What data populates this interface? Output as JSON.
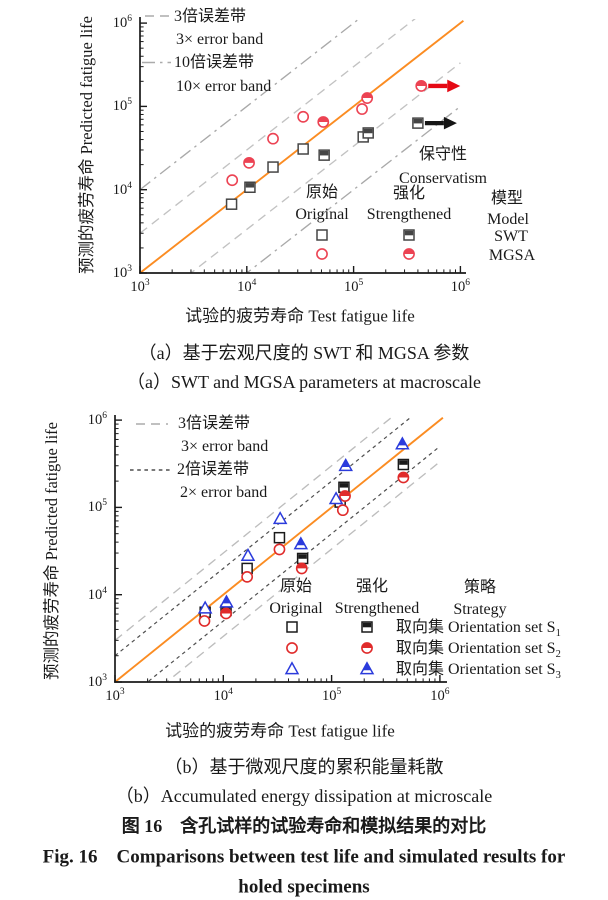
{
  "chart_data": [
    {
      "id": "a",
      "type": "scatter",
      "xscale": "log",
      "yscale": "log",
      "xlim": [
        1000,
        1000000
      ],
      "ylim": [
        1000,
        1000000
      ],
      "tick_exponents": [
        3,
        4,
        5,
        6
      ],
      "xlabel": "试验的疲劳寿命 Test fatigue life",
      "ylabel": "预测的疲劳寿命 Predicted fatigue life",
      "identity_line_color": "#fb8c22",
      "error_bands": [
        {
          "factor": 3,
          "style": "dashed",
          "color": "#c2c2c2",
          "label_cn": "3倍误差带",
          "label_en": "3× error band"
        },
        {
          "factor": 10,
          "style": "dashdot",
          "color": "#a9a9a9",
          "label_cn": "10倍误差带",
          "label_en": "10× error band"
        }
      ],
      "series": [
        {
          "name": "SWT Original",
          "marker": "square",
          "fill": "open",
          "color": "#454545",
          "points": [
            [
              7200,
              6700
            ],
            [
              17600,
              18700
            ],
            [
              33700,
              30800
            ],
            [
              123000,
              43000
            ]
          ]
        },
        {
          "name": "SWT Strengthened",
          "marker": "square",
          "fill": "half",
          "color": "#454545",
          "points": [
            [
              10700,
              10700
            ],
            [
              53000,
              26000
            ],
            [
              137000,
              48000
            ],
            [
              400000,
              63000
            ]
          ]
        },
        {
          "name": "MGSA Original",
          "marker": "circle",
          "fill": "open",
          "color": "#ec4353",
          "points": [
            [
              7300,
              13000
            ],
            [
              17600,
              41000
            ],
            [
              33700,
              75000
            ],
            [
              120000,
              93000
            ]
          ]
        },
        {
          "name": "MGSA Strengthened",
          "marker": "circle",
          "fill": "half",
          "color": "#ec4353",
          "points": [
            [
              10500,
              21000
            ],
            [
              52000,
              65000
            ],
            [
              134000,
              126000
            ],
            [
              430000,
              176000
            ]
          ]
        }
      ],
      "annotations": {
        "conservatism_cn": "保守性",
        "conservatism_en": "Conservatism",
        "arrows": [
          {
            "after_series": "MGSA Strengthened",
            "color": "#e50914"
          },
          {
            "after_series": "SWT Strengthened",
            "color": "#151515"
          }
        ]
      },
      "inplot_legend": {
        "col1_cn": "原始",
        "col1_en": "Original",
        "col2_cn": "强化",
        "col2_en": "Strengthened",
        "col3_cn": "模型",
        "col3_en": "Model",
        "rows": [
          {
            "label": "SWT"
          },
          {
            "label": "MGSA"
          }
        ]
      }
    },
    {
      "id": "b",
      "type": "scatter",
      "xscale": "log",
      "yscale": "log",
      "xlim": [
        1000,
        1000000
      ],
      "ylim": [
        1000,
        1000000
      ],
      "tick_exponents": [
        3,
        4,
        5,
        6
      ],
      "xlabel": "试验的疲劳寿命 Test fatigue life",
      "ylabel": "预测的疲劳寿命 Predicted fatigue life",
      "identity_line_color": "#fb8c22",
      "error_bands": [
        {
          "factor": 3,
          "style": "dashed",
          "color": "#bdbdbd",
          "label_cn": "3倍误差带",
          "label_en": "3× error band"
        },
        {
          "factor": 2,
          "style": "shortdash",
          "color": "#4f4f4f",
          "label_cn": "2倍误差带",
          "label_en": "2× error band"
        }
      ],
      "series": [
        {
          "name": "Set S1 Original",
          "marker": "square",
          "fill": "open",
          "color": "#1a1a1a",
          "points": [
            [
              6800,
              6300
            ],
            [
              16600,
              20000
            ],
            [
              33000,
              45000
            ],
            [
              120000,
              115000
            ]
          ]
        },
        {
          "name": "Set S1 Strengthened",
          "marker": "square",
          "fill": "half",
          "color": "#1a1a1a",
          "points": [
            [
              10600,
              6600
            ],
            [
              54000,
              26000
            ],
            [
              130000,
              170000
            ],
            [
              460000,
              310000
            ]
          ]
        },
        {
          "name": "Set S2 Original",
          "marker": "circle",
          "fill": "open",
          "color": "#e02b2b",
          "points": [
            [
              6700,
              5000
            ],
            [
              16600,
              16000
            ],
            [
              33000,
              33000
            ],
            [
              127000,
              93000
            ]
          ]
        },
        {
          "name": "Set S2 Strengthened",
          "marker": "circle",
          "fill": "half",
          "color": "#e02b2b",
          "points": [
            [
              10600,
              6100
            ],
            [
              53000,
              20000
            ],
            [
              133000,
              135000
            ],
            [
              460000,
              220000
            ]
          ]
        },
        {
          "name": "Set S3 Original",
          "marker": "triangle",
          "fill": "open",
          "color": "#2b3bdc",
          "points": [
            [
              6800,
              7000
            ],
            [
              16900,
              28000
            ],
            [
              33500,
              74000
            ],
            [
              110000,
              125000
            ]
          ]
        },
        {
          "name": "Set S3 Strengthened",
          "marker": "triangle",
          "fill": "half",
          "color": "#2b3bdc",
          "points": [
            [
              10700,
              8200
            ],
            [
              52000,
              38000
            ],
            [
              135000,
              300000
            ],
            [
              450000,
              530000
            ]
          ]
        }
      ],
      "inplot_legend": {
        "col1_cn": "原始",
        "col1_en": "Original",
        "col2_cn": "强化",
        "col2_en": "Strengthened",
        "col3_cn": "策略",
        "col3_en": "Strategy",
        "rows": [
          {
            "label_cn": "取向集",
            "label_en": "Orientation set S",
            "subscript": "1"
          },
          {
            "label_cn": "取向集",
            "label_en": "Orientation set S",
            "subscript": "2"
          },
          {
            "label_cn": "取向集",
            "label_en": "Orientation set S",
            "subscript": "3"
          }
        ]
      }
    }
  ],
  "captions": {
    "panel_a_cn": "（a）基于宏观尺度的 SWT 和 MGSA 参数",
    "panel_a_en": "（a）SWT and MGSA parameters at macroscale",
    "panel_b_cn": "（b）基于微观尺度的累积能量耗散",
    "panel_b_en": "（b）Accumulated energy dissipation at microscale",
    "fig_cn": "图 16　含孔试样的试验寿命和模拟结果的对比",
    "fig_en_line1": "Fig. 16　Comparisons between test life and simulated results for",
    "fig_en_line2": "holed specimens"
  }
}
